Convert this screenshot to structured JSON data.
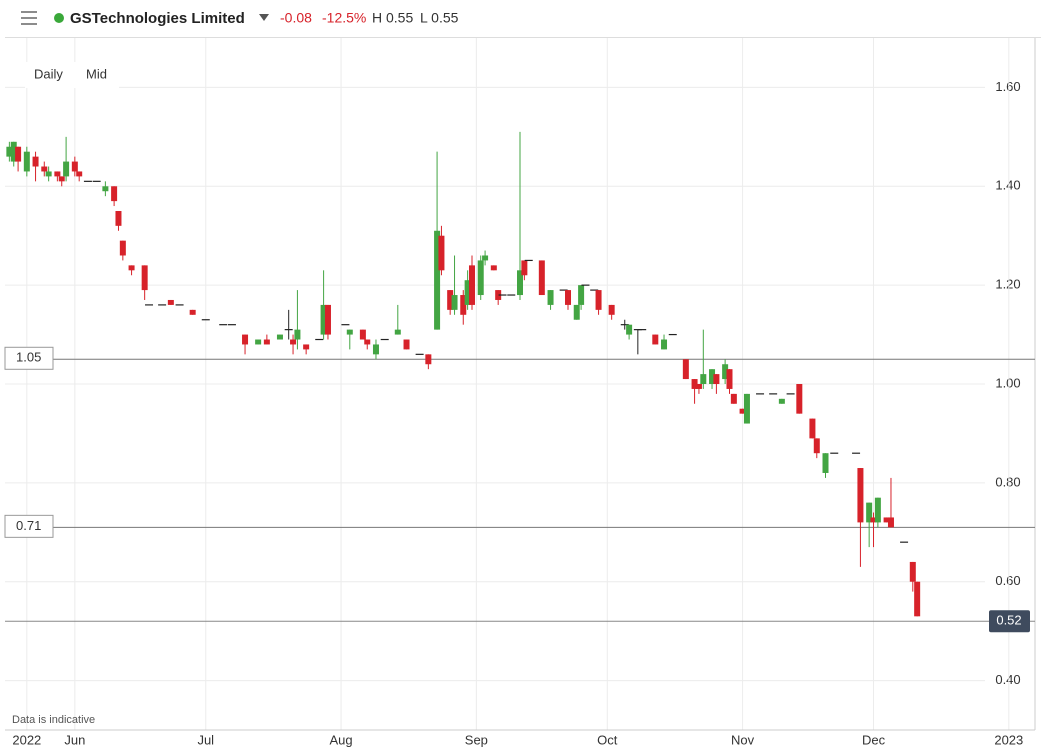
{
  "header": {
    "title": "GSTechnologies Limited",
    "change": "-0.08",
    "change_pct": "-12.5%",
    "high": "H 0.55",
    "low": "L 0.55"
  },
  "buttons": [
    "Daily",
    "Mid"
  ],
  "note": "Data is indicative",
  "chart_data": {
    "type": "candlestick",
    "x": [
      137,
      138,
      139,
      141,
      143,
      145,
      146,
      148,
      149,
      150,
      152,
      153,
      155,
      157,
      159,
      161,
      162,
      163,
      165,
      168,
      169,
      172,
      174,
      176,
      179,
      182,
      186,
      188,
      191,
      194,
      196,
      199,
      201,
      202,
      203,
      205,
      208,
      209,
      210,
      214,
      215,
      218,
      219,
      221,
      223,
      226,
      228,
      231,
      233,
      235,
      236,
      238,
      239,
      241,
      242,
      243,
      245,
      246,
      248,
      249,
      250,
      252,
      254,
      255,
      256,
      259,
      261,
      264,
      265,
      267,
      268,
      269,
      271,
      272,
      275,
      278,
      279,
      281,
      282,
      285,
      287,
      289,
      292,
      294,
      295,
      296,
      298,
      299,
      301,
      302,
      303,
      305,
      306,
      309,
      312,
      314,
      316,
      318,
      321,
      322,
      324,
      326,
      331,
      332,
      334,
      335,
      336,
      338,
      339,
      342,
      344,
      345
    ],
    "open": [
      1.46,
      1.45,
      1.48,
      1.43,
      1.46,
      1.44,
      1.42,
      1.43,
      1.42,
      1.42,
      1.45,
      1.43,
      1.41,
      1.41,
      1.39,
      1.4,
      1.35,
      1.29,
      1.24,
      1.24,
      1.16,
      1.16,
      1.17,
      1.16,
      1.15,
      1.13,
      1.12,
      1.12,
      1.1,
      1.08,
      1.09,
      1.09,
      1.11,
      1.09,
      1.09,
      1.08,
      1.09,
      1.1,
      1.16,
      1.12,
      1.1,
      1.11,
      1.09,
      1.06,
      1.09,
      1.1,
      1.09,
      1.06,
      1.06,
      1.11,
      1.3,
      1.19,
      1.15,
      1.18,
      1.16,
      1.24,
      1.18,
      1.25,
      1.24,
      1.19,
      1.18,
      1.18,
      1.18,
      1.25,
      1.25,
      1.25,
      1.16,
      1.19,
      1.19,
      1.13,
      1.16,
      1.2,
      1.19,
      1.19,
      1.16,
      1.12,
      1.1,
      1.11,
      1.11,
      1.1,
      1.07,
      1.1,
      1.05,
      1.01,
      1.0,
      1.0,
      1.0,
      1.02,
      1.01,
      1.03,
      0.98,
      0.95,
      0.92,
      0.98,
      0.98,
      0.96,
      0.98,
      1.0,
      0.93,
      0.89,
      0.82,
      0.86,
      0.86,
      0.83,
      0.72,
      0.73,
      0.72,
      0.73,
      0.73,
      0.68,
      0.64,
      0.6
    ],
    "high": [
      1.49,
      1.49,
      1.48,
      1.48,
      1.47,
      1.45,
      1.44,
      1.43,
      1.42,
      1.5,
      1.46,
      1.43,
      1.41,
      1.41,
      1.41,
      1.4,
      1.35,
      1.29,
      1.24,
      1.24,
      1.16,
      1.16,
      1.17,
      1.16,
      1.15,
      1.13,
      1.12,
      1.12,
      1.1,
      1.09,
      1.1,
      1.1,
      1.15,
      1.1,
      1.19,
      1.08,
      1.09,
      1.23,
      1.16,
      1.12,
      1.11,
      1.11,
      1.09,
      1.09,
      1.09,
      1.16,
      1.09,
      1.06,
      1.06,
      1.47,
      1.32,
      1.19,
      1.26,
      1.19,
      1.23,
      1.26,
      1.26,
      1.27,
      1.24,
      1.19,
      1.18,
      1.18,
      1.51,
      1.25,
      1.25,
      1.25,
      1.19,
      1.19,
      1.19,
      1.16,
      1.2,
      1.2,
      1.19,
      1.19,
      1.16,
      1.13,
      1.12,
      1.11,
      1.11,
      1.1,
      1.1,
      1.1,
      1.05,
      1.01,
      1.0,
      1.11,
      1.03,
      1.02,
      1.05,
      1.03,
      0.98,
      0.95,
      0.98,
      0.98,
      0.98,
      0.97,
      0.98,
      1.0,
      0.93,
      0.89,
      0.86,
      0.86,
      0.86,
      0.83,
      0.76,
      0.74,
      0.77,
      0.73,
      0.81,
      0.68,
      0.64,
      0.6
    ],
    "low": [
      1.45,
      1.44,
      1.43,
      1.42,
      1.41,
      1.42,
      1.41,
      1.41,
      1.4,
      1.41,
      1.42,
      1.41,
      1.41,
      1.41,
      1.38,
      1.36,
      1.31,
      1.25,
      1.22,
      1.17,
      1.16,
      1.16,
      1.16,
      1.16,
      1.14,
      1.13,
      1.12,
      1.12,
      1.06,
      1.08,
      1.08,
      1.09,
      1.09,
      1.06,
      1.07,
      1.06,
      1.09,
      1.09,
      1.09,
      1.12,
      1.07,
      1.09,
      1.07,
      1.05,
      1.09,
      1.1,
      1.07,
      1.06,
      1.03,
      1.11,
      1.22,
      1.14,
      1.14,
      1.12,
      1.15,
      1.15,
      1.17,
      1.24,
      1.23,
      1.16,
      1.18,
      1.18,
      1.17,
      1.21,
      1.25,
      1.18,
      1.15,
      1.19,
      1.15,
      1.13,
      1.15,
      1.2,
      1.19,
      1.14,
      1.13,
      1.11,
      1.09,
      1.06,
      1.11,
      1.08,
      1.07,
      1.1,
      1.01,
      0.96,
      0.98,
      0.99,
      0.99,
      0.98,
      1.0,
      0.98,
      0.96,
      0.94,
      0.92,
      0.98,
      0.98,
      0.96,
      0.98,
      0.94,
      0.89,
      0.85,
      0.81,
      0.86,
      0.86,
      0.63,
      0.67,
      0.67,
      0.71,
      0.72,
      0.71,
      0.68,
      0.58,
      0.53
    ],
    "close": [
      1.48,
      1.49,
      1.45,
      1.47,
      1.44,
      1.43,
      1.43,
      1.42,
      1.41,
      1.45,
      1.43,
      1.42,
      1.41,
      1.41,
      1.4,
      1.37,
      1.32,
      1.26,
      1.23,
      1.19,
      1.16,
      1.16,
      1.16,
      1.16,
      1.14,
      1.13,
      1.12,
      1.12,
      1.08,
      1.09,
      1.08,
      1.1,
      1.11,
      1.08,
      1.11,
      1.07,
      1.09,
      1.16,
      1.1,
      1.12,
      1.11,
      1.09,
      1.08,
      1.08,
      1.09,
      1.11,
      1.07,
      1.06,
      1.04,
      1.31,
      1.23,
      1.15,
      1.18,
      1.14,
      1.21,
      1.16,
      1.25,
      1.26,
      1.23,
      1.17,
      1.18,
      1.18,
      1.23,
      1.22,
      1.25,
      1.18,
      1.19,
      1.19,
      1.16,
      1.16,
      1.2,
      1.2,
      1.19,
      1.15,
      1.14,
      1.12,
      1.12,
      1.11,
      1.11,
      1.08,
      1.09,
      1.1,
      1.01,
      0.99,
      0.99,
      1.02,
      1.03,
      1.0,
      1.04,
      0.99,
      0.96,
      0.94,
      0.98,
      0.98,
      0.98,
      0.97,
      0.98,
      0.94,
      0.89,
      0.86,
      0.86,
      0.86,
      0.86,
      0.72,
      0.76,
      0.72,
      0.77,
      0.72,
      0.71,
      0.68,
      0.6,
      0.53
    ],
    "up_color": "#43a543",
    "down_color": "#d7222a",
    "doji_color": "#222222",
    "xlim": [
      136,
      372
    ],
    "ylim": [
      0.3,
      1.7
    ],
    "xticks": [
      {
        "value": 141,
        "label": "2022"
      },
      {
        "value": 152,
        "label": "Jun"
      },
      {
        "value": 182,
        "label": "Jul"
      },
      {
        "value": 213,
        "label": "Aug"
      },
      {
        "value": 244,
        "label": "Sep"
      },
      {
        "value": 274,
        "label": "Oct"
      },
      {
        "value": 305,
        "label": "Nov"
      },
      {
        "value": 335,
        "label": "Dec"
      },
      {
        "value": 366,
        "label": "2023"
      }
    ],
    "yticks": [
      {
        "value": 0.4,
        "label": "0.40"
      },
      {
        "value": 0.6,
        "label": "0.60"
      },
      {
        "value": 0.8,
        "label": "0.80"
      },
      {
        "value": 1.0,
        "label": "1.00"
      },
      {
        "value": 1.2,
        "label": "1.20"
      },
      {
        "value": 1.4,
        "label": "1.40"
      },
      {
        "value": 1.6,
        "label": "1.60"
      }
    ],
    "grid": true,
    "price_lines": [
      1.05,
      0.71
    ],
    "last_price": 0.52
  }
}
